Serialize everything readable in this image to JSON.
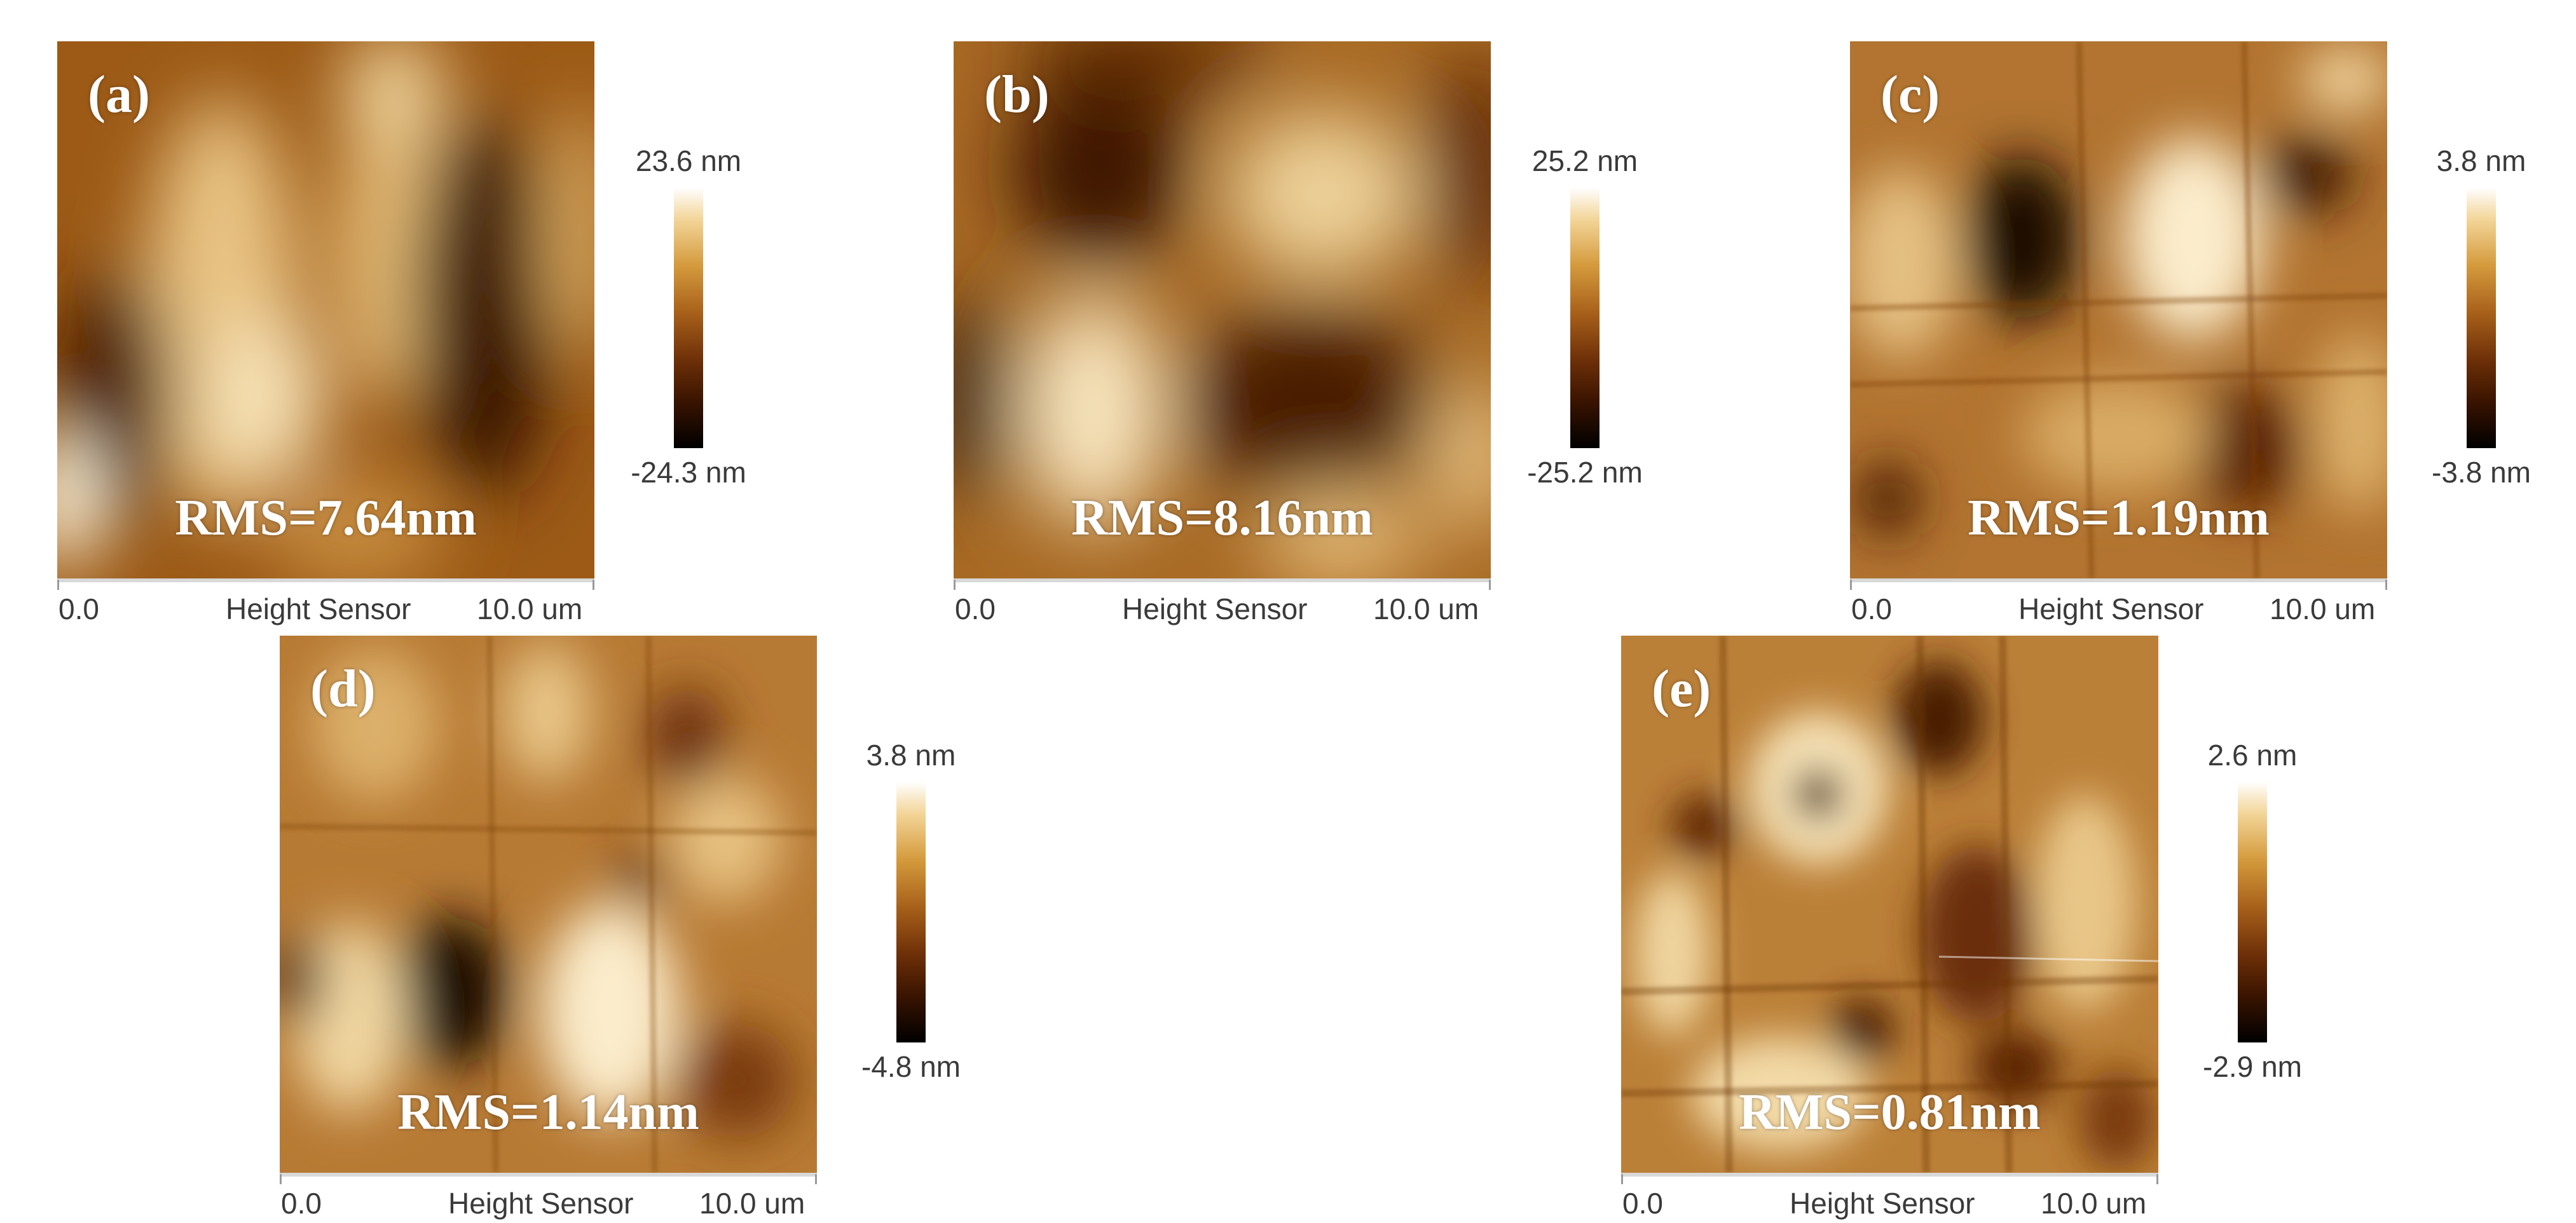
{
  "panels": [
    {
      "label": "(a)",
      "rms": "RMS=7.64nm",
      "scale_max": "23.6 nm",
      "scale_min": "-24.3 nm",
      "axis_start": "0.0",
      "axis_title": "Height Sensor",
      "axis_end": "10.0 um"
    },
    {
      "label": "(b)",
      "rms": "RMS=8.16nm",
      "scale_max": "25.2 nm",
      "scale_min": "-25.2 nm",
      "axis_start": "0.0",
      "axis_title": "Height Sensor",
      "axis_end": "10.0 um"
    },
    {
      "label": "(c)",
      "rms": "RMS=1.19nm",
      "scale_max": "3.8 nm",
      "scale_min": "-3.8 nm",
      "axis_start": "0.0",
      "axis_title": "Height Sensor",
      "axis_end": "10.0 um"
    },
    {
      "label": "(d)",
      "rms": "RMS=1.14nm",
      "scale_max": "3.8 nm",
      "scale_min": "-4.8 nm",
      "axis_start": "0.0",
      "axis_title": "Height Sensor",
      "axis_end": "10.0 um"
    },
    {
      "label": "(e)",
      "rms": "RMS=0.81nm",
      "scale_max": "2.6 nm",
      "scale_min": "-2.9 nm",
      "axis_start": "0.0",
      "axis_title": "Height Sensor",
      "axis_end": "10.0 um"
    }
  ],
  "colors": {
    "colormap_high": "#ffffff",
    "colormap_mid": "#a8611a",
    "colormap_low": "#000000",
    "label_text": "#ffffff",
    "axis_text": "#3a3a3a"
  }
}
